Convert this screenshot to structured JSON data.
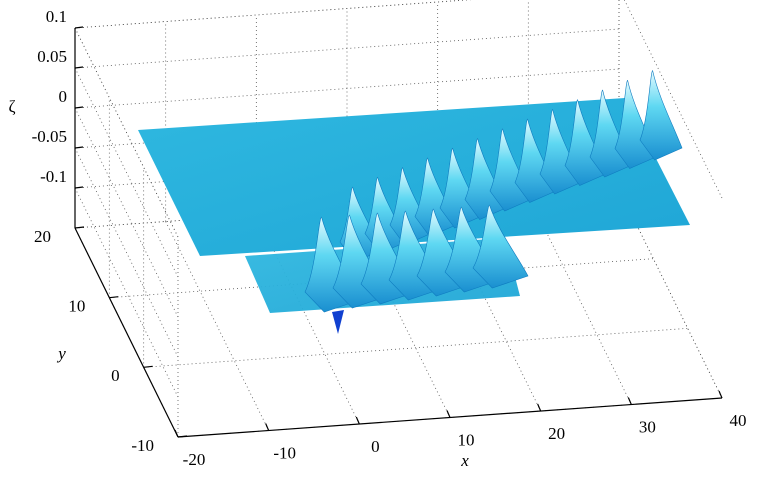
{
  "chart_data": {
    "type": "surface3d",
    "xlabel": "x",
    "ylabel": "y",
    "zlabel": "ζ",
    "xlim": [
      -20,
      40
    ],
    "ylim": [
      -10,
      20
    ],
    "zlim": [
      -0.15,
      0.1
    ],
    "xticks": [
      -20,
      -10,
      0,
      10,
      20,
      30,
      40
    ],
    "yticks": [
      -10,
      0,
      10,
      20
    ],
    "zticks": [
      -0.1,
      -0.05,
      0,
      0.05,
      0.1
    ],
    "grid": true
  }
}
